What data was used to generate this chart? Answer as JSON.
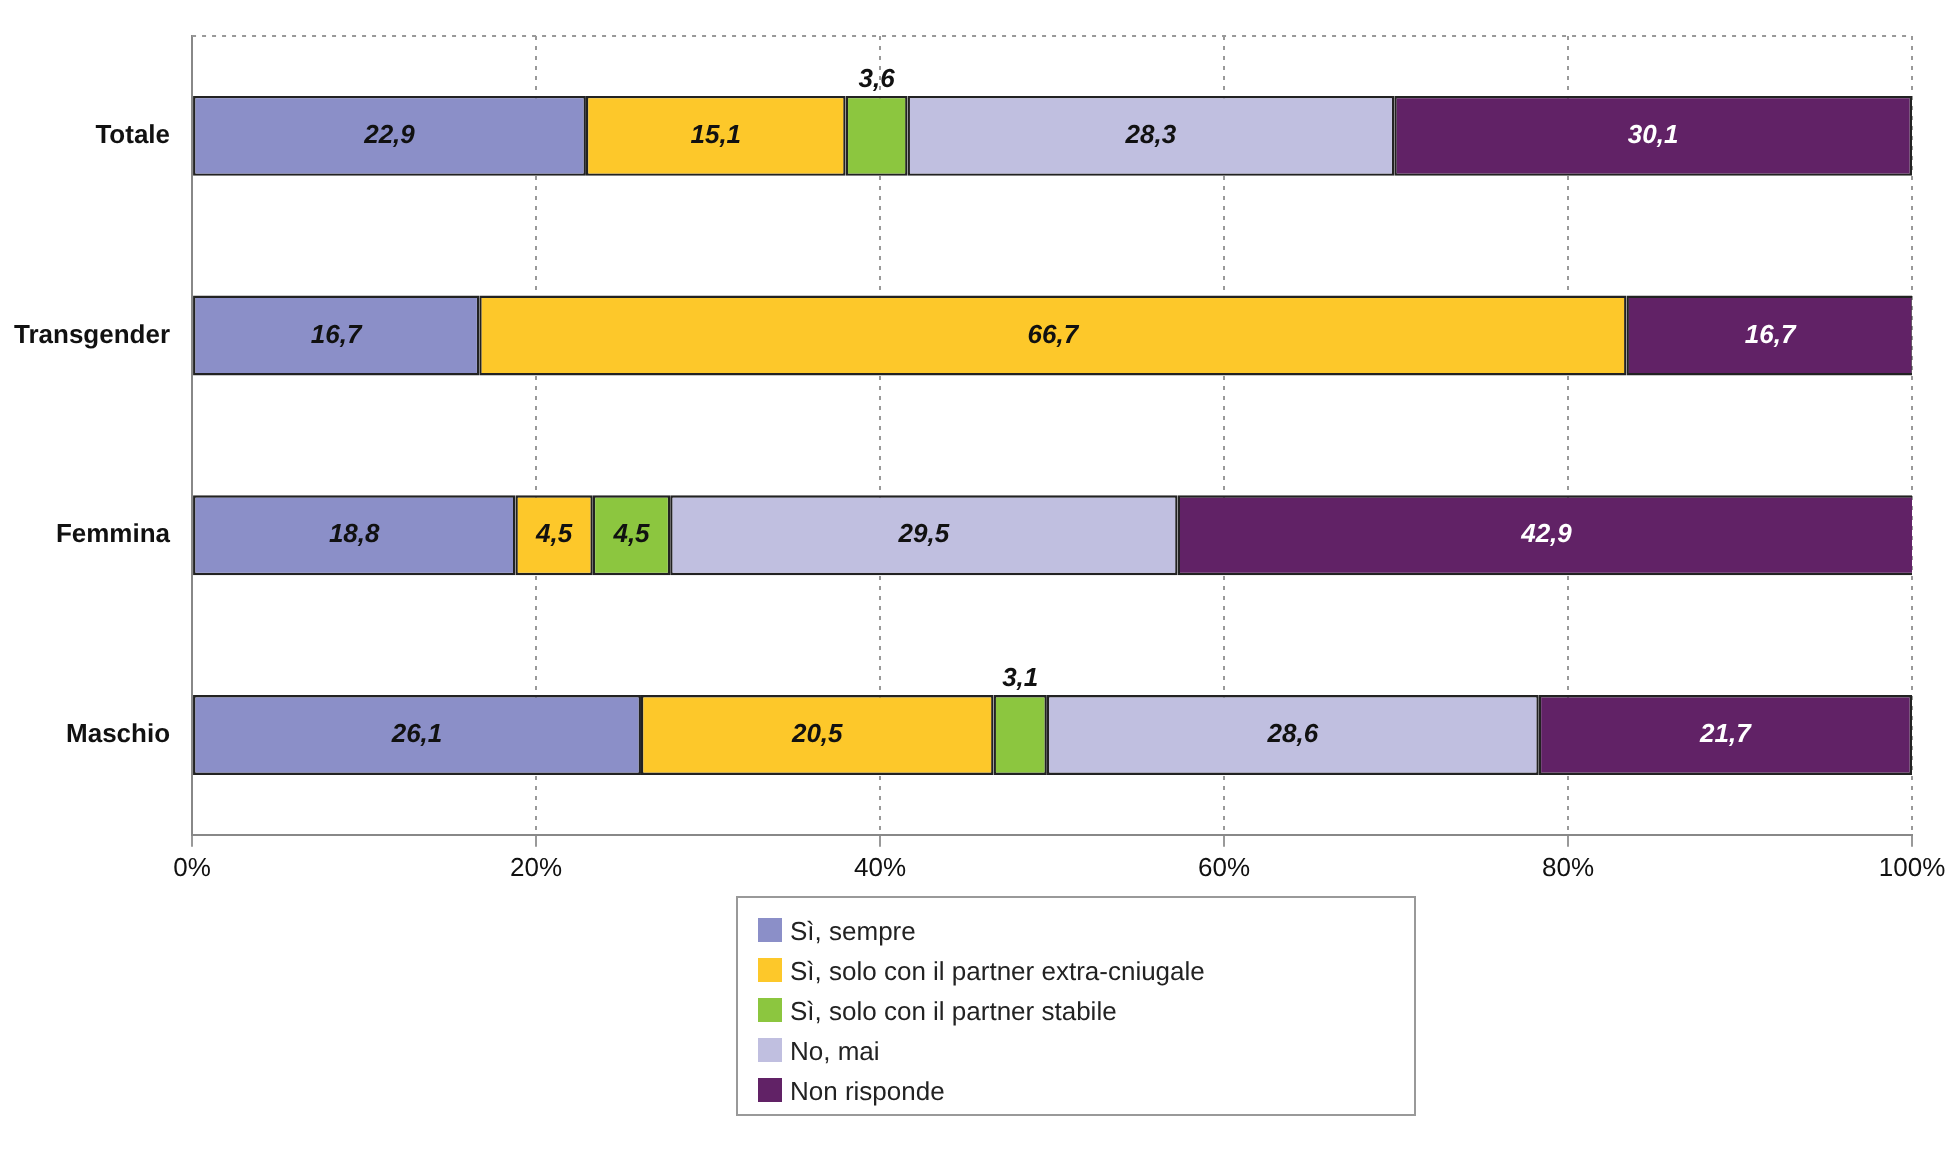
{
  "chart_data": {
    "type": "bar",
    "orientation": "horizontal",
    "stacked": true,
    "categories": [
      "Totale",
      "Transgender",
      "Femmina",
      "Maschio"
    ],
    "series": [
      {
        "name": "Sì, sempre",
        "color": "#8b8fc8",
        "values": [
          22.9,
          16.7,
          18.8,
          26.1
        ],
        "value_labels": [
          "22,9",
          "16,7",
          "18,8",
          "26,1"
        ]
      },
      {
        "name": "Sì, solo con il partner extra-cniugale",
        "color": "#fdc82a",
        "values": [
          15.1,
          66.7,
          4.5,
          20.5
        ],
        "value_labels": [
          "15,1",
          "66,7",
          "4,5",
          "20,5"
        ]
      },
      {
        "name": "Sì, solo con il partner stabile",
        "color": "#8cc63f",
        "values": [
          3.6,
          null,
          4.5,
          3.1
        ],
        "value_labels": [
          "3,6",
          null,
          "4,5",
          "3,1"
        ]
      },
      {
        "name": "No, mai",
        "color": "#c0bfe0",
        "values": [
          28.3,
          null,
          29.5,
          28.6
        ],
        "value_labels": [
          "28,3",
          null,
          "29,5",
          "28,6"
        ]
      },
      {
        "name": "Non risponde",
        "color": "#612266",
        "values": [
          30.1,
          16.7,
          42.9,
          21.7
        ],
        "value_labels": [
          "30,1",
          "16,7",
          "42,9",
          "21,7"
        ]
      }
    ],
    "xlim": [
      0,
      100
    ],
    "xticks": [
      {
        "value": 0,
        "label": "0%"
      },
      {
        "value": 20,
        "label": "20%"
      },
      {
        "value": 40,
        "label": "40%"
      },
      {
        "value": 60,
        "label": "60%"
      },
      {
        "value": 80,
        "label": "80%"
      },
      {
        "value": 100,
        "label": "100%"
      }
    ],
    "grid": "x",
    "legend": "bottom"
  }
}
